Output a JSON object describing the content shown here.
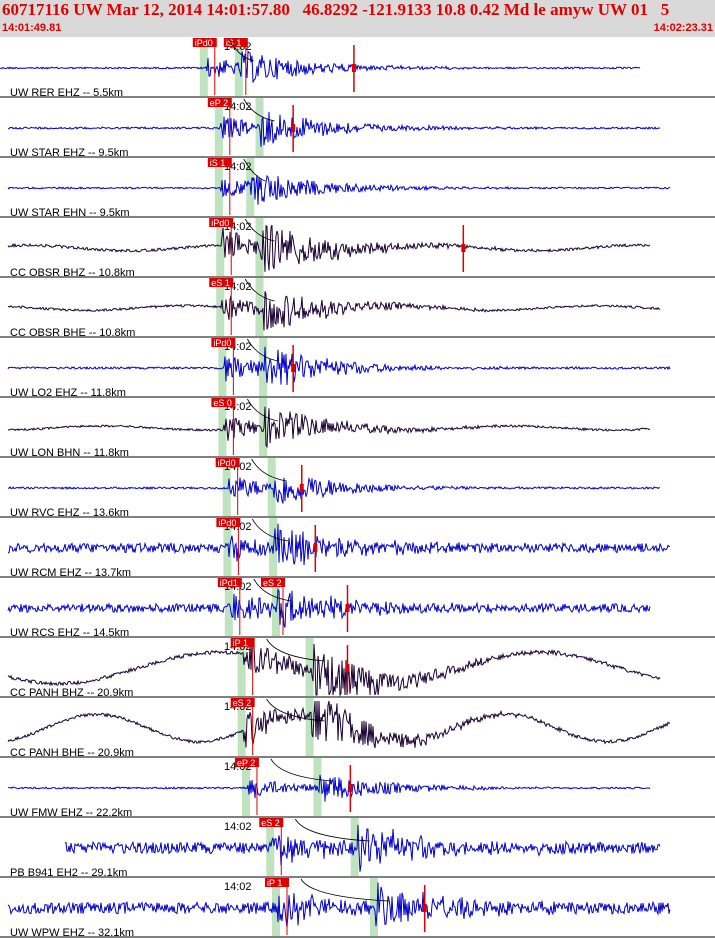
{
  "header": {
    "title": "60717116 UW Mar 12, 2014 14:01:57.80   46.8292 -121.9133 10.8 0.42 Md le amyw UW 01   5",
    "start_time": "14:01:49.81",
    "end_time": "14:02:23.31"
  },
  "time_label": "14:02",
  "colors": {
    "high_rate": "#0000cc",
    "broadband": "#1a0033",
    "pick": "#dd0000",
    "band": "#bfe3bf",
    "theory": "#000000"
  },
  "traces": [
    {
      "label": "UW RER EHZ -- 5.5km",
      "kind": "short",
      "amp": 0.35,
      "picks": [
        "iPd0",
        "iS 1"
      ],
      "p_pick": 0.292,
      "s_pick": 0.341,
      "event_marks": [
        0.495
      ]
    },
    {
      "label": "UW STAR EHZ -- 9.5km",
      "kind": "short",
      "amp": 0.4,
      "picks": [
        "eP 2"
      ],
      "p_pick": 0.313,
      "s_pick": 0.37,
      "event_marks": [
        0.41
      ]
    },
    {
      "label": "UW STAR EHN -- 9.5km",
      "kind": "short",
      "amp": 0.35,
      "picks": [
        "iS 1"
      ],
      "p_pick": 0.313,
      "s_pick": 0.357,
      "event_marks": []
    },
    {
      "label": "CC OBSR BHZ -- 10.8km",
      "kind": "broad",
      "amp": 0.6,
      "picks": [
        "iPd0"
      ],
      "p_pick": 0.315,
      "s_pick": 0.37,
      "event_marks": [
        0.648
      ]
    },
    {
      "label": "CC OBSR BHE -- 10.8km",
      "kind": "broad",
      "amp": 0.5,
      "picks": [
        "eS 1"
      ],
      "p_pick": 0.315,
      "s_pick": 0.37,
      "event_marks": []
    },
    {
      "label": "UW LO2 EHZ -- 11.8km",
      "kind": "short",
      "amp": 0.45,
      "picks": [
        "iPd0"
      ],
      "p_pick": 0.318,
      "s_pick": 0.375,
      "event_marks": [
        0.41
      ]
    },
    {
      "label": "UW LON BHN -- 11.8km",
      "kind": "broad",
      "amp": 0.45,
      "picks": [
        "eS 0"
      ],
      "p_pick": 0.318,
      "s_pick": 0.375,
      "event_marks": []
    },
    {
      "label": "UW RVC EHZ -- 13.6km",
      "kind": "short",
      "amp": 0.4,
      "picks": [
        "iPd0"
      ],
      "p_pick": 0.324,
      "s_pick": 0.387,
      "event_marks": [
        0.422
      ]
    },
    {
      "label": "UW RCM EHZ -- 13.7km",
      "kind": "short",
      "amp": 0.45,
      "picks": [
        "iPd0"
      ],
      "p_pick": 0.325,
      "s_pick": 0.389,
      "event_marks": [
        0.441
      ]
    },
    {
      "label": "UW RCS EHZ -- 14.5km",
      "kind": "short",
      "amp": 0.4,
      "picks": [
        "iPd1",
        "eS 2"
      ],
      "p_pick": 0.327,
      "s_pick": 0.393,
      "event_marks": [
        0.486
      ]
    },
    {
      "label": "CC PANH BHZ -- 20.9km",
      "kind": "broad",
      "amp": 0.8,
      "picks": [
        "iP 1"
      ],
      "p_pick": 0.345,
      "s_pick": 0.44,
      "event_marks": [
        0.486
      ]
    },
    {
      "label": "CC PANH BHE -- 20.9km",
      "kind": "broad",
      "amp": 0.7,
      "picks": [
        "eS 2"
      ],
      "p_pick": 0.345,
      "s_pick": 0.44,
      "event_marks": []
    },
    {
      "label": "UW FMW EHZ -- 22.2km",
      "kind": "short",
      "amp": 0.35,
      "picks": [
        "eP 2"
      ],
      "p_pick": 0.351,
      "s_pick": 0.451,
      "event_marks": [
        0.49
      ]
    },
    {
      "label": "PB B941 EH2 -- 29.1km",
      "kind": "short",
      "amp": 0.55,
      "picks": [
        "eS 2"
      ],
      "p_pick": 0.385,
      "s_pick": 0.503,
      "event_marks": []
    },
    {
      "label": "UW WPW EHZ -- 32.1km",
      "kind": "short",
      "amp": 0.55,
      "picks": [
        "iP 1"
      ],
      "p_pick": 0.393,
      "s_pick": 0.53,
      "event_marks": [
        0.594
      ]
    }
  ]
}
